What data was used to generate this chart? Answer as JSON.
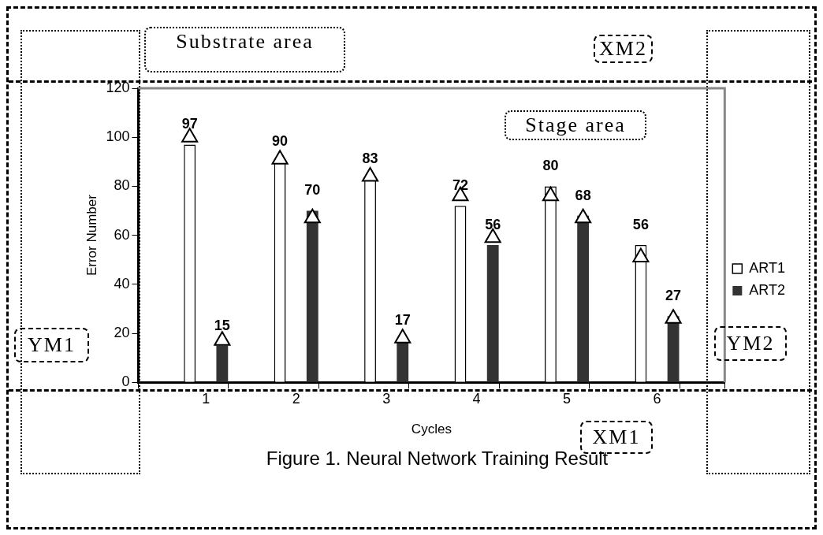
{
  "chart_data": {
    "type": "bar",
    "title": "Figure 1. Neural Network Training Result",
    "xlabel": "Cycles",
    "ylabel": "Error Number",
    "categories": [
      "1",
      "2",
      "3",
      "4",
      "5",
      "6"
    ],
    "series": [
      {
        "name": "ART1",
        "color": "#ffffff",
        "values": [
          97,
          90,
          83,
          72,
          80,
          56
        ],
        "value_labels": [
          "97",
          "90",
          "83",
          "72",
          "80",
          "56"
        ]
      },
      {
        "name": "ART2",
        "color": "#333333",
        "values": [
          15,
          70,
          17,
          56,
          68,
          27
        ],
        "value_labels": [
          "15",
          "70",
          "17",
          "56",
          "68",
          "27"
        ]
      },
      {
        "type": "scatter",
        "marker": "triangle",
        "color": "#ffffff",
        "values": [
          100,
          91,
          84,
          76,
          76,
          51
        ]
      },
      {
        "type": "scatter",
        "marker": "triangle",
        "color": "#ffffff",
        "values": [
          17,
          67,
          18,
          59,
          67,
          26
        ]
      }
    ],
    "ylim": [
      0,
      120
    ],
    "yticks": [
      0,
      20,
      40,
      60,
      80,
      100,
      120
    ],
    "grid": false,
    "legend": "right",
    "annotations": [
      "Substrate area",
      "XM2",
      "Stage area",
      "YM1",
      "YM2",
      "XM1"
    ]
  }
}
